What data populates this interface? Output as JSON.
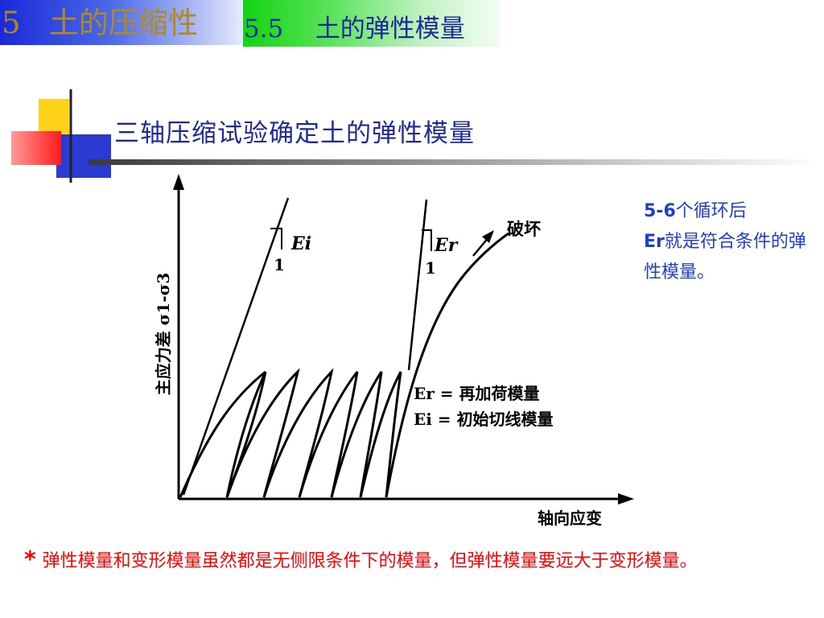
{
  "header": {
    "chapter_title": "5   土的压缩性",
    "section_title": "5.5    土的弹性模量"
  },
  "slide_heading": "三轴压缩试验确定土的弹性模量",
  "diagram": {
    "y_axis_label": "主应力差 σ1-σ3",
    "x_axis_label": "轴向应变",
    "initial_slope_label": "Ei",
    "initial_slope_run": "1",
    "reload_slope_label": "Er",
    "reload_slope_run": "1",
    "failure_label": "破坏",
    "legend_er": "Er = 再加荷模量",
    "legend_ei": "Ei = 初始切线模量"
  },
  "note": {
    "cycles": "5-6",
    "after": "个循环后",
    "er": "Er",
    "rest": "就是符合条件的弹性模量。"
  },
  "footnote": {
    "star": "*",
    "text": "弹性模量和变形模量虽然都是无侧限条件下的模量，但弹性模量要远大于变形模量。"
  },
  "colors": {
    "chapter_band": "#1a2ad8",
    "section_band": "#12d412",
    "heading_text": "#1e2a9a",
    "note_text": "#1e3fc8",
    "footnote_text": "#ff0000"
  }
}
